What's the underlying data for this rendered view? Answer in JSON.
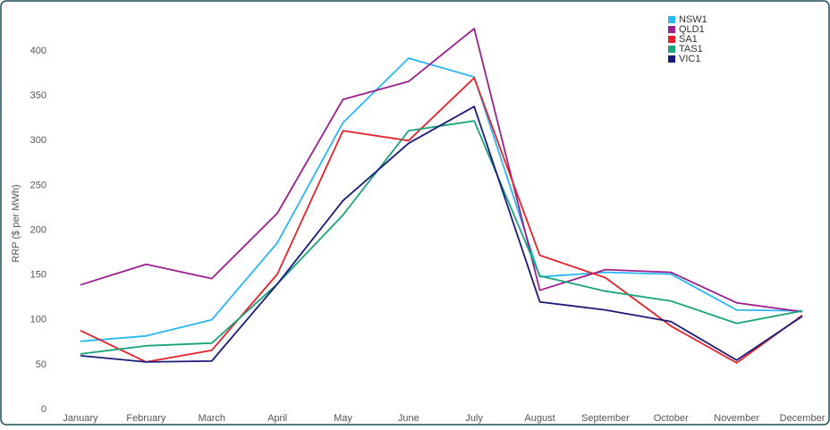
{
  "chart_data": {
    "type": "line",
    "y_label": "RRP ($ per MWh)",
    "categories": [
      "January",
      "February",
      "March",
      "April",
      "May",
      "June",
      "July",
      "August",
      "September",
      "October",
      "November",
      "December"
    ],
    "series": [
      {
        "name": "NSW1",
        "color": "#29b6f6",
        "values": [
          76,
          82,
          100,
          186,
          320,
          392,
          371,
          148,
          153,
          151,
          111,
          110
        ]
      },
      {
        "name": "QLD1",
        "color": "#9c1f8e",
        "values": [
          139,
          162,
          146,
          219,
          346,
          366,
          425,
          133,
          156,
          153,
          119,
          109
        ]
      },
      {
        "name": "SA1",
        "color": "#e8202a",
        "values": [
          88,
          53,
          66,
          151,
          311,
          300,
          370,
          172,
          147,
          93,
          52,
          105
        ]
      },
      {
        "name": "TAS1",
        "color": "#1aa37a",
        "values": [
          62,
          71,
          74,
          140,
          217,
          311,
          322,
          149,
          132,
          121,
          96,
          110
        ]
      },
      {
        "name": "VIC1",
        "color": "#1a1a7a",
        "values": [
          60,
          53,
          54,
          140,
          233,
          297,
          338,
          120,
          111,
          98,
          55,
          104
        ]
      }
    ],
    "ylim": [
      0,
      430
    ],
    "yticks": [
      0,
      50,
      100,
      150,
      200,
      250,
      300,
      350,
      400
    ],
    "grid": false,
    "legend": "top-right"
  }
}
